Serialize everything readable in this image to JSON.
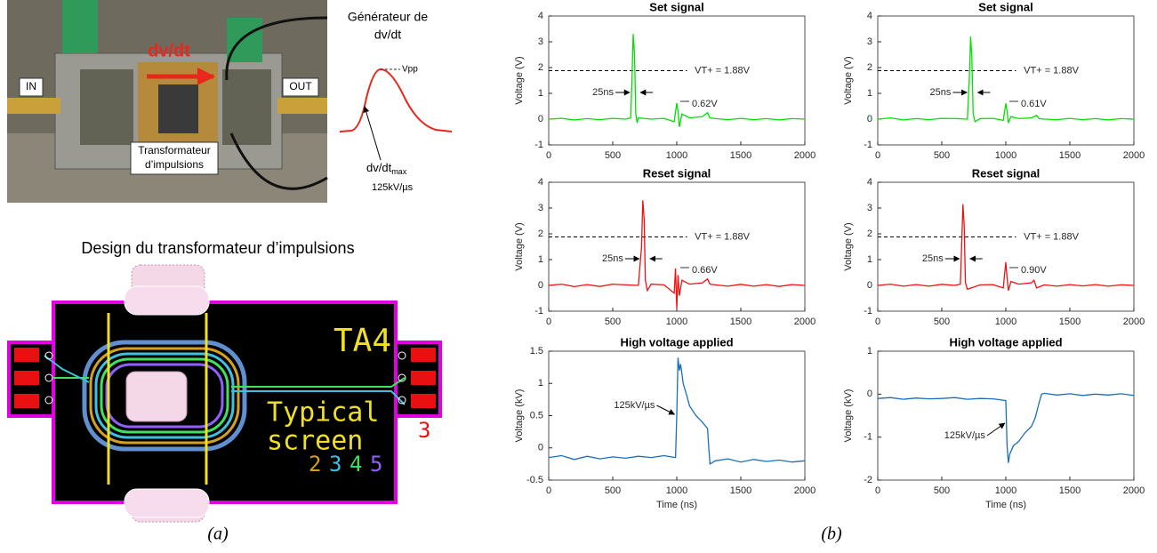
{
  "photo": {
    "in_label": "IN",
    "out_label": "OUT",
    "arrow_label": "dv/dt",
    "transformer_label": [
      "Transformateur",
      "d’impulsions"
    ]
  },
  "generator": {
    "title": [
      "Générateur de",
      "dv/dt"
    ],
    "peak_label": "Vpp",
    "slope_label": "dv/dt",
    "slope_subscript": "max",
    "slope_value": "125kV/µs"
  },
  "design": {
    "title": "Design du transformateur d’impulsions",
    "chip_label": "TA4",
    "screen_label": [
      "Typical",
      "screen"
    ],
    "layer_numbers": [
      "2",
      "3",
      "4",
      "5"
    ],
    "side_number": "3"
  },
  "captions": [
    "(a)",
    "(b)"
  ],
  "chart_data": [
    {
      "type": "line",
      "title": "Set signal",
      "ylabel": "Voltage (V)",
      "color": "#00e000",
      "xlim": [
        0,
        2000
      ],
      "xticks": [
        0,
        500,
        1000,
        1500,
        2000
      ],
      "ylim": [
        -1,
        4
      ],
      "yticks": [
        -1,
        0,
        1,
        2,
        3,
        4
      ],
      "threshold": {
        "value": 1.88,
        "label": "VT+ = 1.88V"
      },
      "annotations": [
        "25ns",
        "0.62V"
      ],
      "x": [
        0,
        100,
        200,
        300,
        400,
        500,
        600,
        640,
        650,
        660,
        670,
        680,
        690,
        700,
        800,
        900,
        980,
        1000,
        1010,
        1020,
        1040,
        1100,
        1200,
        1240,
        1260,
        1300,
        1400,
        1500,
        1600,
        1700,
        1800,
        1900,
        2000
      ],
      "values": [
        0,
        0.03,
        -0.03,
        0.02,
        -0.02,
        0.03,
        0,
        0.05,
        1.5,
        3.3,
        2.5,
        0.2,
        -0.15,
        0.05,
        0,
        0.03,
        -0.1,
        0.62,
        0.3,
        -0.3,
        0.2,
        0.05,
        0.1,
        0.25,
        0.05,
        0.02,
        -0.02,
        0.03,
        -0.02,
        0.02,
        -0.03,
        0.02,
        0
      ]
    },
    {
      "type": "line",
      "title": "Set signal",
      "ylabel": "Voltage (V)",
      "color": "#00e000",
      "xlim": [
        0,
        2000
      ],
      "xticks": [
        0,
        500,
        1000,
        1500,
        2000
      ],
      "ylim": [
        -1,
        4
      ],
      "yticks": [
        -1,
        0,
        1,
        2,
        3,
        4
      ],
      "threshold": {
        "value": 1.88,
        "label": "VT+ = 1.88V"
      },
      "annotations": [
        "25ns",
        "0.61V"
      ],
      "x": [
        0,
        100,
        200,
        300,
        400,
        500,
        600,
        700,
        715,
        725,
        735,
        745,
        760,
        800,
        900,
        980,
        1000,
        1010,
        1020,
        1040,
        1100,
        1200,
        1240,
        1260,
        1300,
        1400,
        1500,
        1600,
        1700,
        1800,
        1900,
        2000
      ],
      "values": [
        0,
        0.05,
        -0.03,
        0.02,
        -0.02,
        0.03,
        0.02,
        0,
        1.6,
        3.2,
        2.4,
        0.2,
        -0.1,
        0.02,
        0.03,
        -0.05,
        0.61,
        0.3,
        -0.15,
        0.1,
        0.02,
        0.05,
        0.15,
        0.02,
        0,
        -0.02,
        0.03,
        -0.02,
        0.02,
        -0.03,
        0.02,
        0
      ]
    },
    {
      "type": "line",
      "title": "Reset signal",
      "ylabel": "Voltage (V)",
      "color": "#ee1111",
      "xlim": [
        0,
        2000
      ],
      "xticks": [
        0,
        500,
        1000,
        1500,
        2000
      ],
      "ylim": [
        -1,
        4
      ],
      "yticks": [
        -1,
        0,
        1,
        2,
        3,
        4
      ],
      "threshold": {
        "value": 1.88,
        "label": "VT+ = 1.88V"
      },
      "annotations": [
        "25ns",
        "0.66V"
      ],
      "x": [
        0,
        100,
        200,
        300,
        400,
        500,
        600,
        700,
        725,
        735,
        745,
        755,
        770,
        800,
        900,
        980,
        990,
        1000,
        1010,
        1020,
        1040,
        1100,
        1200,
        1240,
        1260,
        1300,
        1400,
        1500,
        1600,
        1700,
        1800,
        1900,
        2000
      ],
      "values": [
        0,
        0.05,
        -0.05,
        0.03,
        -0.04,
        0.05,
        0.02,
        0,
        1.5,
        3.3,
        2.6,
        0.2,
        -0.2,
        0.05,
        0.02,
        -0.3,
        0.66,
        -0.9,
        0.4,
        -0.4,
        0.2,
        0.05,
        0.1,
        0.25,
        0.05,
        0.02,
        -0.03,
        0.04,
        -0.03,
        0.03,
        -0.04,
        0.03,
        0
      ]
    },
    {
      "type": "line",
      "title": "Reset signal",
      "ylabel": "Voltage (V)",
      "color": "#ee1111",
      "xlim": [
        0,
        2000
      ],
      "xticks": [
        0,
        500,
        1000,
        1500,
        2000
      ],
      "ylim": [
        -1,
        4
      ],
      "yticks": [
        -1,
        0,
        1,
        2,
        3,
        4
      ],
      "threshold": {
        "value": 1.88,
        "label": "VT+ = 1.88V"
      },
      "annotations": [
        "25ns",
        "0.90V"
      ],
      "x": [
        0,
        100,
        200,
        300,
        400,
        500,
        600,
        645,
        655,
        665,
        675,
        685,
        700,
        800,
        900,
        980,
        1000,
        1010,
        1020,
        1040,
        1100,
        1200,
        1220,
        1240,
        1300,
        1400,
        1500,
        1600,
        1700,
        1800,
        1900,
        2000
      ],
      "values": [
        0,
        0.05,
        -0.03,
        0.03,
        -0.03,
        0.04,
        0,
        0.05,
        1.5,
        3.15,
        2.3,
        0.1,
        -0.15,
        0.02,
        0.03,
        -0.1,
        0.9,
        0.3,
        -0.2,
        0.15,
        0.05,
        0.1,
        0.2,
        -0.1,
        0.02,
        -0.03,
        0.03,
        -0.02,
        0.03,
        -0.03,
        0.02,
        0
      ]
    },
    {
      "type": "line",
      "title": "High voltage applied",
      "ylabel": "Voltage (kV)",
      "xlabel": "Time (ns)",
      "color": "#1a6fb8",
      "xlim": [
        0,
        2000
      ],
      "xticks": [
        0,
        500,
        1000,
        1500,
        2000
      ],
      "ylim": [
        -0.5,
        1.5
      ],
      "yticks": [
        -0.5,
        0,
        0.5,
        1,
        1.5
      ],
      "annotations": [
        "125kV/µs"
      ],
      "x": [
        0,
        100,
        200,
        300,
        400,
        500,
        600,
        700,
        800,
        900,
        990,
        1000,
        1010,
        1020,
        1030,
        1050,
        1080,
        1100,
        1150,
        1200,
        1240,
        1250,
        1260,
        1300,
        1400,
        1500,
        1600,
        1700,
        1800,
        1900,
        2000
      ],
      "values": [
        -0.15,
        -0.12,
        -0.18,
        -0.13,
        -0.17,
        -0.14,
        -0.16,
        -0.13,
        -0.15,
        -0.12,
        -0.15,
        0.5,
        1.4,
        1.2,
        1.3,
        1.0,
        0.8,
        0.65,
        0.5,
        0.4,
        0.3,
        0.0,
        -0.25,
        -0.2,
        -0.17,
        -0.22,
        -0.18,
        -0.21,
        -0.19,
        -0.22,
        -0.2
      ]
    },
    {
      "type": "line",
      "title": "High voltage applied",
      "ylabel": "Voltage (kV)",
      "xlabel": "Time (ns)",
      "color": "#1a6fb8",
      "xlim": [
        0,
        2000
      ],
      "xticks": [
        0,
        500,
        1000,
        1500,
        2000
      ],
      "ylim": [
        -2,
        1
      ],
      "yticks": [
        -2,
        -1,
        0,
        1
      ],
      "annotations": [
        "125kV/µs"
      ],
      "x": [
        0,
        100,
        200,
        300,
        400,
        500,
        600,
        700,
        800,
        900,
        1000,
        1010,
        1020,
        1030,
        1060,
        1100,
        1150,
        1200,
        1230,
        1260,
        1280,
        1300,
        1400,
        1500,
        1600,
        1700,
        1800,
        1900,
        2000
      ],
      "values": [
        -0.1,
        -0.08,
        -0.12,
        -0.09,
        -0.11,
        -0.1,
        -0.08,
        -0.12,
        -0.1,
        -0.11,
        -0.15,
        -1.2,
        -1.6,
        -1.4,
        -1.2,
        -1.1,
        -0.9,
        -0.75,
        -0.55,
        -0.2,
        0,
        0.02,
        -0.02,
        0.01,
        -0.03,
        0,
        -0.02,
        0.01,
        -0.03
      ]
    }
  ]
}
